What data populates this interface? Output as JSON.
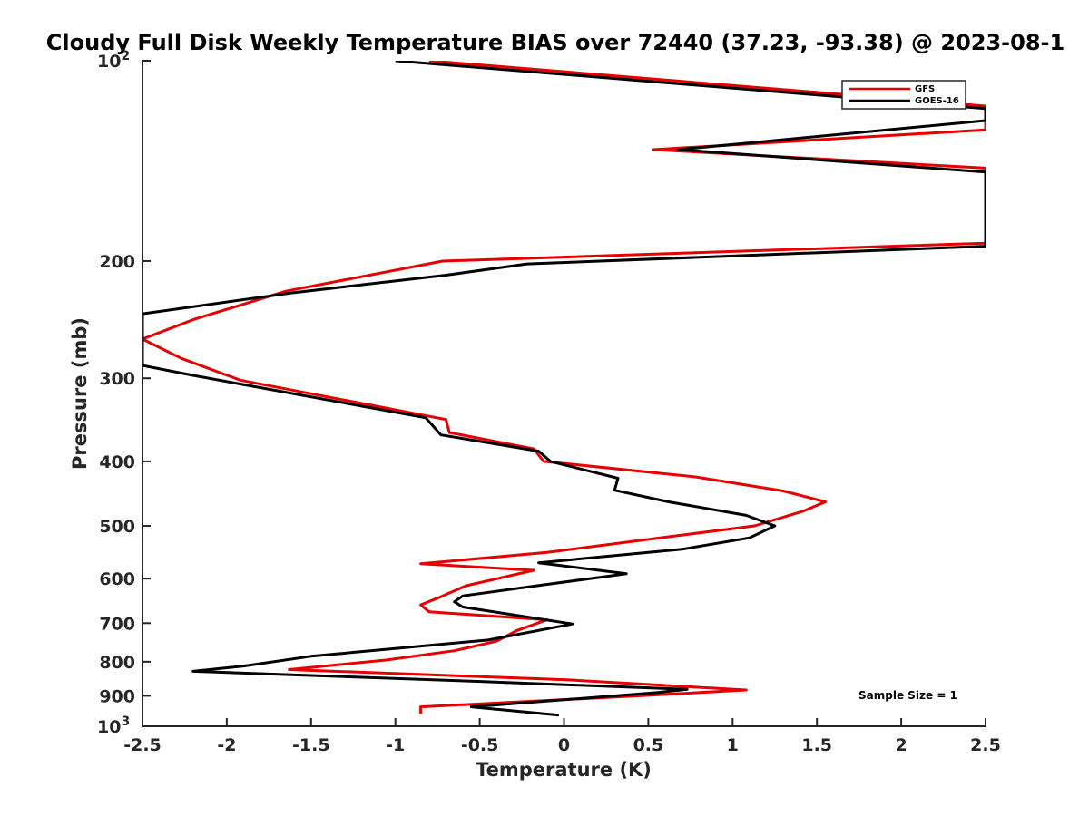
{
  "chart_data": {
    "type": "line",
    "title": "Cloudy Full Disk Weekly Temperature BIAS over 72440 (37.23, -93.38) @ 2023-08-1",
    "xlabel": "Temperature (K)",
    "ylabel": "Pressure (mb)",
    "xlim": [
      -2.5,
      2.5
    ],
    "ylim": [
      100,
      1000
    ],
    "y_scale": "log",
    "y_reversed": true,
    "grid": false,
    "legend_position": "top-right",
    "annotation": "Sample Size = 1",
    "x_ticks": [
      {
        "value": -2.5,
        "label": "-2.5"
      },
      {
        "value": -2,
        "label": "-2"
      },
      {
        "value": -1.5,
        "label": "-1.5"
      },
      {
        "value": -1,
        "label": "-1"
      },
      {
        "value": -0.5,
        "label": "-0.5"
      },
      {
        "value": 0,
        "label": "0"
      },
      {
        "value": 0.5,
        "label": "0.5"
      },
      {
        "value": 1,
        "label": "1"
      },
      {
        "value": 1.5,
        "label": "1.5"
      },
      {
        "value": 2,
        "label": "2"
      },
      {
        "value": 2.5,
        "label": "2.5"
      }
    ],
    "y_ticks": [
      {
        "value": 100,
        "label": "10",
        "sup": "2"
      },
      {
        "value": 200,
        "label": "200"
      },
      {
        "value": 300,
        "label": "300"
      },
      {
        "value": 400,
        "label": "400"
      },
      {
        "value": 500,
        "label": "500"
      },
      {
        "value": 600,
        "label": "600"
      },
      {
        "value": 700,
        "label": "700"
      },
      {
        "value": 800,
        "label": "800"
      },
      {
        "value": 900,
        "label": "900"
      },
      {
        "value": 1000,
        "label": "10",
        "sup": "3"
      }
    ],
    "series": [
      {
        "name": "GFS",
        "color": "#e60000",
        "points": [
          [
            -0.8,
            100
          ],
          [
            2.5,
            117
          ],
          [
            2.5,
            127
          ],
          [
            0.53,
            136
          ],
          [
            2.5,
            145
          ],
          [
            2.5,
            188
          ],
          [
            -0.72,
            200
          ],
          [
            -1.65,
            222
          ],
          [
            -2.2,
            245
          ],
          [
            -2.5,
            262
          ],
          [
            -2.27,
            280
          ],
          [
            -1.92,
            302
          ],
          [
            -0.7,
            346
          ],
          [
            -0.68,
            362
          ],
          [
            -0.18,
            383
          ],
          [
            -0.12,
            400
          ],
          [
            0.78,
            422
          ],
          [
            1.3,
            443
          ],
          [
            1.55,
            460
          ],
          [
            1.42,
            475
          ],
          [
            1.13,
            500
          ],
          [
            0.6,
            520
          ],
          [
            -0.1,
            548
          ],
          [
            -0.85,
            570
          ],
          [
            -0.18,
            583
          ],
          [
            -0.58,
            615
          ],
          [
            -0.75,
            642
          ],
          [
            -0.85,
            657
          ],
          [
            -0.8,
            673
          ],
          [
            -0.1,
            692
          ],
          [
            -0.28,
            718
          ],
          [
            -0.4,
            745
          ],
          [
            -0.65,
            770
          ],
          [
            -1.05,
            795
          ],
          [
            -1.63,
            822
          ],
          [
            0.0,
            851
          ],
          [
            1.08,
            882
          ],
          [
            0.45,
            900
          ],
          [
            -0.85,
            935
          ],
          [
            -0.85,
            958
          ]
        ]
      },
      {
        "name": "GOES-16",
        "color": "#000000",
        "points": [
          [
            -1.0,
            100
          ],
          [
            2.5,
            118
          ],
          [
            2.5,
            123
          ],
          [
            0.68,
            136
          ],
          [
            2.5,
            147
          ],
          [
            2.5,
            190
          ],
          [
            -0.22,
            202
          ],
          [
            -0.7,
            210
          ],
          [
            -1.6,
            223
          ],
          [
            -2.5,
            240
          ],
          [
            -2.5,
            287
          ],
          [
            -2.2,
            297
          ],
          [
            -0.82,
            344
          ],
          [
            -0.73,
            365
          ],
          [
            -0.15,
            386
          ],
          [
            -0.08,
            400
          ],
          [
            0.32,
            424
          ],
          [
            0.3,
            442
          ],
          [
            0.62,
            460
          ],
          [
            1.08,
            482
          ],
          [
            1.25,
            500
          ],
          [
            1.1,
            521
          ],
          [
            0.7,
            542
          ],
          [
            -0.15,
            568
          ],
          [
            0.37,
            590
          ],
          [
            -0.1,
            612
          ],
          [
            -0.6,
            637
          ],
          [
            -0.65,
            650
          ],
          [
            -0.6,
            662
          ],
          [
            0.05,
            702
          ],
          [
            -0.45,
            742
          ],
          [
            -1.5,
            785
          ],
          [
            -1.9,
            812
          ],
          [
            -2.2,
            827
          ],
          [
            -0.53,
            856
          ],
          [
            0.73,
            880
          ],
          [
            0.55,
            890
          ],
          [
            -0.55,
            935
          ],
          [
            -0.03,
            962
          ]
        ]
      }
    ]
  }
}
